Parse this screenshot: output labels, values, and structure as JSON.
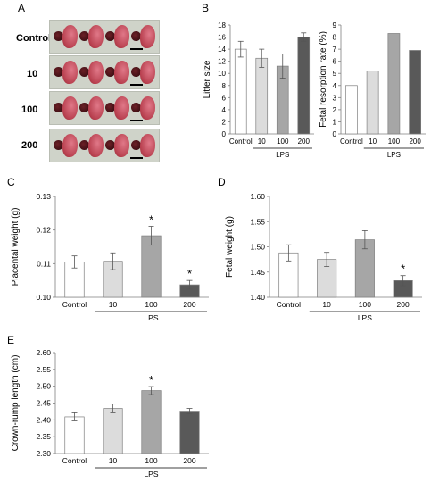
{
  "panels": {
    "a": {
      "letter": "A",
      "rows": [
        "Control",
        "10",
        "100",
        "200"
      ]
    },
    "b": {
      "letter": "B"
    },
    "c": {
      "letter": "C"
    },
    "d": {
      "letter": "D"
    },
    "e": {
      "letter": "E"
    }
  },
  "colors": {
    "control": "#ffffff",
    "dose10": "#dcdcdc",
    "dose100": "#a6a6a6",
    "dose200": "#595959",
    "axis": "#7f7f7f"
  },
  "chart_data": [
    {
      "id": "b-left",
      "type": "bar",
      "categories": [
        "Control",
        "10",
        "100",
        "200"
      ],
      "values": [
        14.0,
        12.5,
        11.2,
        16.0
      ],
      "errors": [
        1.3,
        1.5,
        2.0,
        0.7
      ],
      "ylabel": "Litter size",
      "xgroup_label": "LPS",
      "ylim": [
        0,
        18
      ],
      "yticks": [
        "0",
        "2",
        "4",
        "6",
        "8",
        "10",
        "12",
        "14",
        "16",
        "18"
      ],
      "stars": [
        false,
        false,
        false,
        false
      ]
    },
    {
      "id": "b-right",
      "type": "bar",
      "categories": [
        "Control",
        "10",
        "100",
        "200"
      ],
      "values": [
        4.0,
        5.2,
        8.3,
        6.9
      ],
      "ylabel": "Fetal resorption rate (%)",
      "xgroup_label": "LPS",
      "ylim": [
        0,
        9
      ],
      "yticks": [
        "0",
        "1",
        "2",
        "3",
        "4",
        "5",
        "6",
        "7",
        "8",
        "9"
      ],
      "stars": [
        false,
        false,
        false,
        false
      ]
    },
    {
      "id": "c",
      "type": "bar",
      "categories": [
        "Control",
        "10",
        "100",
        "200"
      ],
      "values": [
        0.1105,
        0.1107,
        0.1183,
        0.1037
      ],
      "errors": [
        0.0018,
        0.0025,
        0.0028,
        0.0013
      ],
      "ylabel": "Placental weight (g)",
      "xgroup_label": "LPS",
      "ylim": [
        0.1,
        0.13
      ],
      "yticks": [
        "0.10",
        "0.11",
        "0.12",
        "0.13"
      ],
      "stars": [
        false,
        false,
        true,
        true
      ],
      "star_symbol": "*"
    },
    {
      "id": "d",
      "type": "bar",
      "categories": [
        "Control",
        "10",
        "100",
        "200"
      ],
      "values": [
        1.488,
        1.475,
        1.514,
        1.433
      ],
      "errors": [
        0.016,
        0.014,
        0.018,
        0.01
      ],
      "ylabel": "Fetal weight (g)",
      "xgroup_label": "LPS",
      "ylim": [
        1.4,
        1.6
      ],
      "yticks": [
        "1.40",
        "1.45",
        "1.50",
        "1.55",
        "1.60"
      ],
      "stars": [
        false,
        false,
        false,
        true
      ],
      "star_symbol": "*"
    },
    {
      "id": "e",
      "type": "bar",
      "categories": [
        "Control",
        "10",
        "100",
        "200"
      ],
      "values": [
        2.409,
        2.434,
        2.487,
        2.426
      ],
      "errors": [
        0.012,
        0.013,
        0.012,
        0.008
      ],
      "ylabel": "Crown-rump length (cm)",
      "xgroup_label": "LPS",
      "ylim": [
        2.3,
        2.6
      ],
      "yticks": [
        "2.30",
        "2.35",
        "2.40",
        "2.45",
        "2.50",
        "2.55",
        "2.60"
      ],
      "stars": [
        false,
        false,
        true,
        false
      ],
      "star_symbol": "*"
    }
  ]
}
